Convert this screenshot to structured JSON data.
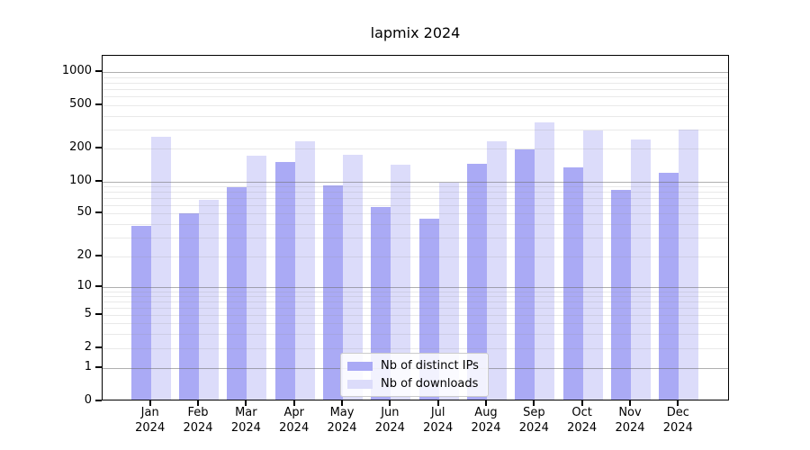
{
  "chart_data": {
    "type": "bar",
    "title": "lapmix 2024",
    "categories": [
      "Jan",
      "Feb",
      "Mar",
      "Apr",
      "May",
      "Jun",
      "Jul",
      "Aug",
      "Sep",
      "Oct",
      "Nov",
      "Dec"
    ],
    "year": "2024",
    "series": [
      {
        "name": "Nb of distinct IPs",
        "color": "#aaaaf5",
        "values": [
          37,
          48,
          85,
          145,
          88,
          55,
          43,
          140,
          190,
          130,
          80,
          117
        ]
      },
      {
        "name": "Nb of downloads",
        "color": "#dcdcfa",
        "values": [
          245,
          65,
          165,
          225,
          170,
          138,
          94,
          225,
          335,
          280,
          235,
          290
        ]
      }
    ],
    "xlabel": "",
    "ylabel": "",
    "ylim": [
      0,
      1400
    ],
    "y_axis": {
      "scale": "symlog",
      "ticks": [
        0,
        1,
        2,
        5,
        10,
        20,
        50,
        100,
        200,
        500,
        1000
      ],
      "major_gridline_values": [
        1,
        10,
        100,
        1000
      ],
      "minor_gridline_values": [
        3,
        4,
        6,
        7,
        8,
        9,
        30,
        40,
        60,
        70,
        80,
        90,
        300,
        400,
        600,
        700,
        800,
        900
      ]
    },
    "grid": true,
    "legend": {
      "position": "lower center"
    }
  }
}
